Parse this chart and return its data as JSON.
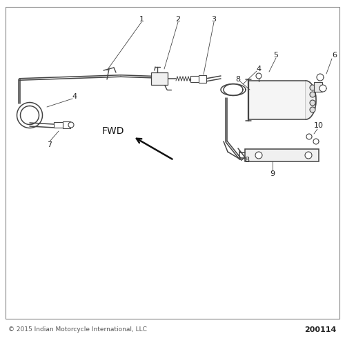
{
  "bg_color": "#ffffff",
  "line_color": "#444444",
  "text_color": "#222222",
  "copyright_text": "© 2015 Indian Motorcycle International, LLC",
  "part_number": "200114",
  "fwd_text": "FWD",
  "font_size_labels": 8,
  "font_size_copyright": 6.5,
  "font_size_part": 8,
  "font_size_fwd": 10
}
